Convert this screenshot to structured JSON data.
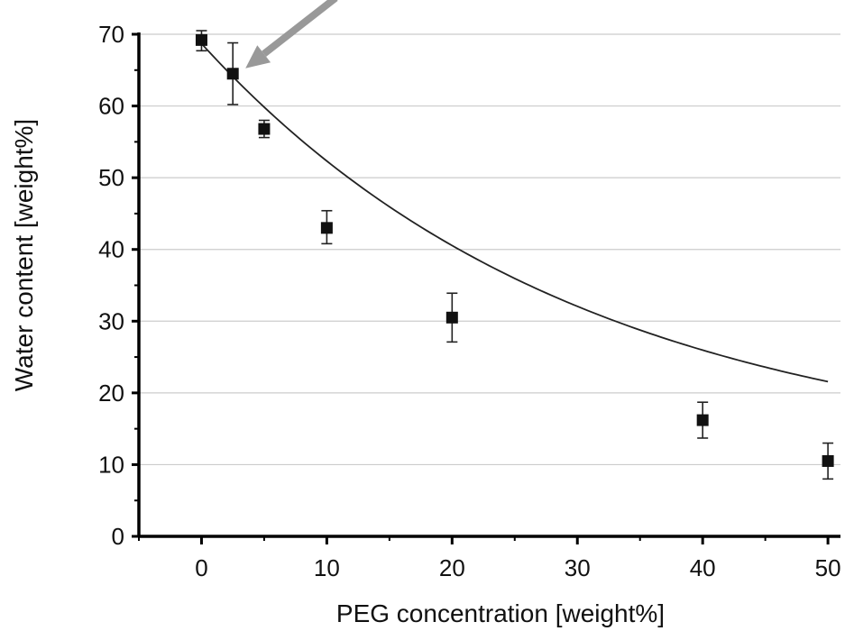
{
  "chart_data": {
    "type": "scatter",
    "xlabel": "PEG concentration [weight%]",
    "ylabel": "Water content [weight%]",
    "xlim": [
      -5,
      51
    ],
    "ylim": [
      0,
      70
    ],
    "x_ticks": [
      0,
      10,
      20,
      30,
      40,
      50
    ],
    "y_ticks": [
      0,
      10,
      20,
      30,
      40,
      50,
      60,
      70
    ],
    "grid": "horizontal",
    "legend": "none",
    "series": [
      {
        "points": [
          {
            "x": 0,
            "y": 69.2,
            "err_low": 1.5,
            "err_high": 1.3
          },
          {
            "x": 2.5,
            "y": 64.5,
            "err_low": 4.3,
            "err_high": 4.3
          },
          {
            "x": 5,
            "y": 56.8,
            "err_low": 1.2,
            "err_high": 1.2
          },
          {
            "x": 10,
            "y": 43.0,
            "err_low": 2.2,
            "err_high": 2.4
          },
          {
            "x": 20,
            "y": 30.5,
            "err_low": 3.4,
            "err_high": 3.4
          },
          {
            "x": 40,
            "y": 16.2,
            "err_low": 2.5,
            "err_high": 2.5
          },
          {
            "x": 50,
            "y": 10.5,
            "err_low": 2.5,
            "err_high": 2.5
          }
        ]
      }
    ],
    "fit_curve": {
      "type": "exponential",
      "a": 58.4,
      "b": 0.0329,
      "c": 10.3,
      "x_range": [
        0,
        50
      ]
    },
    "annotations": [
      {
        "type": "arrow",
        "points_to": {
          "x": 2.5,
          "y": 64.5
        }
      }
    ],
    "colors": {
      "marker": "#111111",
      "fit_line": "#222222",
      "grid": "#cccccc",
      "arrow": "#999999",
      "axis": "#000000"
    }
  }
}
